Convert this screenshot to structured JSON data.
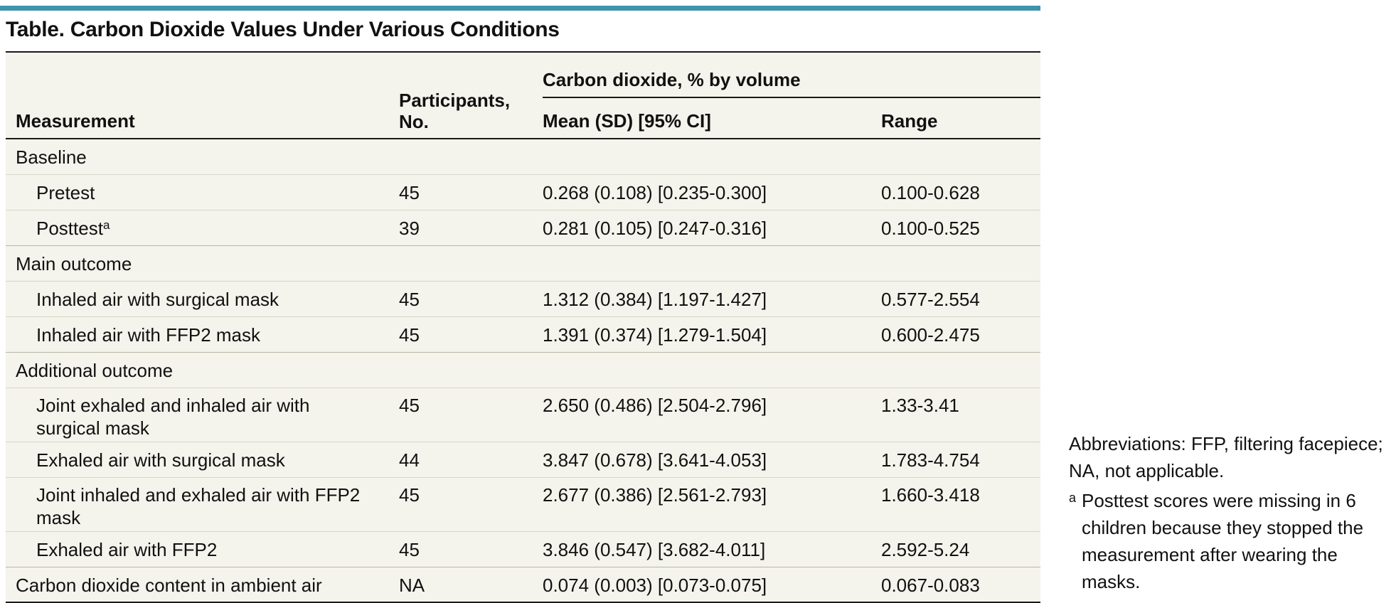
{
  "title": "Table. Carbon Dioxide Values Under Various Conditions",
  "accent_color": "#3f93ad",
  "table_bg": "#f4f3ec",
  "headers": {
    "measurement": "Measurement",
    "participants_line1": "Participants,",
    "participants_line2": "No.",
    "co2_group": "Carbon dioxide, % by volume",
    "mean": "Mean (SD) [95% CI]",
    "range": "Range"
  },
  "groups": {
    "baseline": "Baseline",
    "main": "Main outcome",
    "additional": "Additional outcome"
  },
  "rows": [
    {
      "measurement": "Pretest",
      "participants": "45",
      "mean": "0.268 (0.108) [0.235-0.300]",
      "range": "0.100-0.628"
    },
    {
      "measurement": "Posttest",
      "sup": "a",
      "participants": "39",
      "mean": "0.281 (0.105) [0.247-0.316]",
      "range": "0.100-0.525"
    },
    {
      "measurement": "Inhaled air with surgical mask",
      "participants": "45",
      "mean": "1.312 (0.384) [1.197-1.427]",
      "range": "0.577-2.554"
    },
    {
      "measurement": "Inhaled air with FFP2 mask",
      "participants": "45",
      "mean": "1.391 (0.374) [1.279-1.504]",
      "range": "0.600-2.475"
    },
    {
      "measurement_line1": "Joint exhaled and inhaled air with",
      "measurement_line2": "surgical mask",
      "participants": "45",
      "mean": "2.650 (0.486) [2.504-2.796]",
      "range": "1.33-3.41"
    },
    {
      "measurement": "Exhaled air with surgical mask",
      "participants": "44",
      "mean": "3.847 (0.678) [3.641-4.053]",
      "range": "1.783-4.754"
    },
    {
      "measurement_line1": "Joint inhaled and exhaled air with FFP2",
      "measurement_line2": "mask",
      "participants": "45",
      "mean": "2.677 (0.386) [2.561-2.793]",
      "range": "1.660-3.418"
    },
    {
      "measurement": "Exhaled air with FFP2",
      "participants": "45",
      "mean": "3.846 (0.547) [3.682-4.011]",
      "range": "2.592-5.24"
    },
    {
      "measurement": "Carbon dioxide content in ambient air",
      "participants": "NA",
      "mean": "0.074 (0.003) [0.073-0.075]",
      "range": "0.067-0.083"
    }
  ],
  "notes": {
    "abbreviations": "Abbreviations: FFP, filtering facepiece; NA, not applicable.",
    "footnote_marker": "a",
    "footnote_text": "Posttest scores were missing in 6 children because they stopped the measurement after wearing the masks."
  }
}
